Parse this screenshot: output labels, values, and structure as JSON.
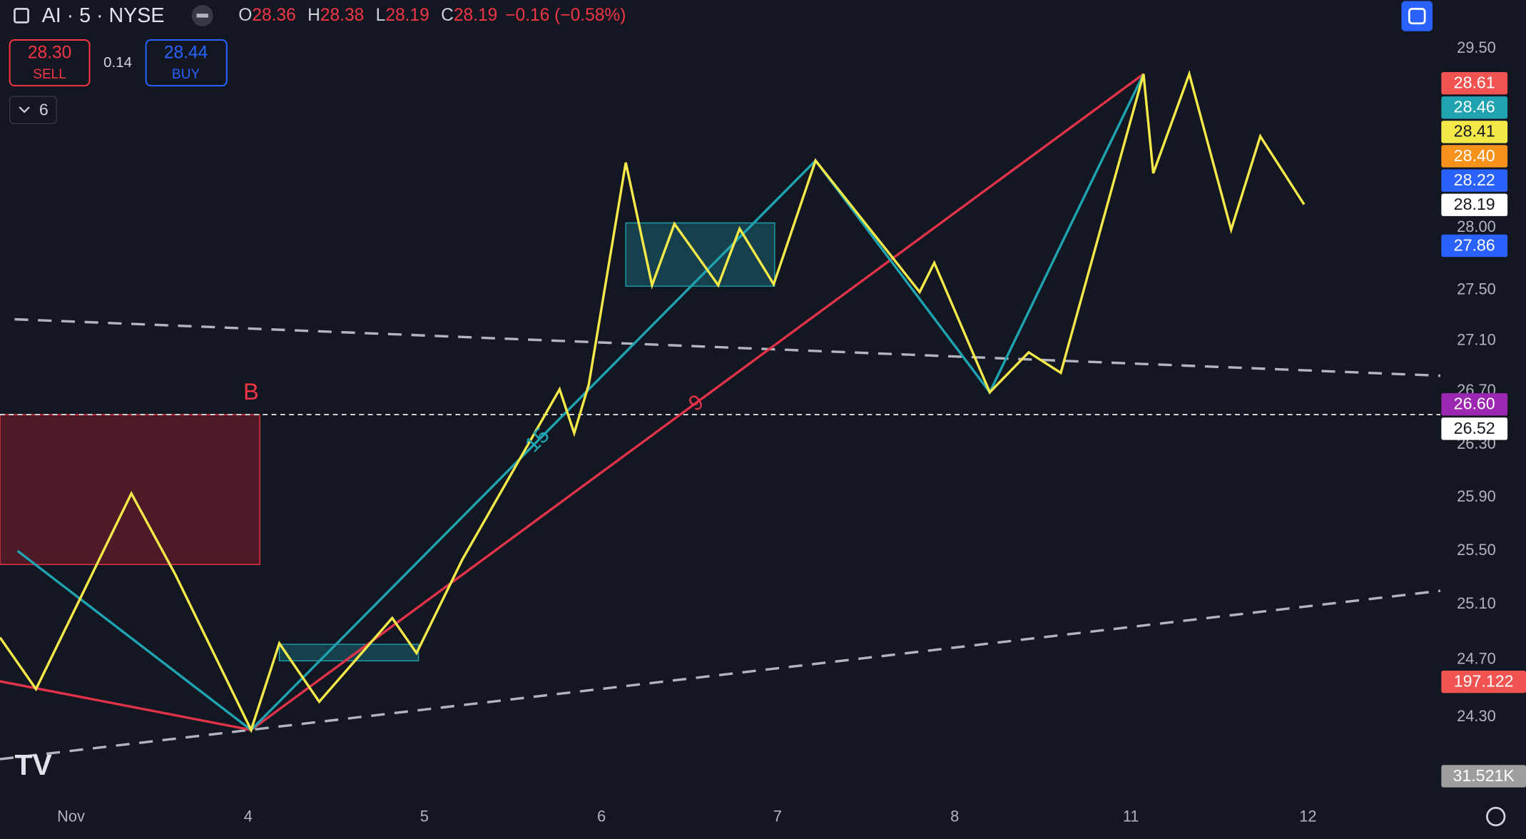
{
  "header": {
    "symbol": "AI · 5 · NYSE",
    "ohlc": [
      {
        "label": "O",
        "value": "28.36"
      },
      {
        "label": "H",
        "value": "28.38"
      },
      {
        "label": "L",
        "value": "28.19"
      },
      {
        "label": "C",
        "value": "28.19"
      }
    ],
    "change": "−0.16 (−0.58%)"
  },
  "trade": {
    "sell_price": "28.30",
    "sell_label": "SELL",
    "spread": "0.14",
    "buy_price": "28.44",
    "buy_label": "BUY"
  },
  "indicators_count": "6",
  "price_axis": [
    "29.50",
    "28.00",
    "27.50",
    "27.10",
    "26.70",
    "26.30",
    "25.90",
    "25.50",
    "25.10",
    "24.70",
    "24.30"
  ],
  "price_badges": [
    {
      "label": "28.61",
      "color": "#f05350"
    },
    {
      "label": "28.46",
      "color": "#1fa3b1"
    },
    {
      "label": "28.41",
      "color": "#f5e94a"
    },
    {
      "label": "28.40",
      "color": "#f7931a"
    },
    {
      "label": "28.22",
      "color": "#2962ff"
    },
    {
      "label": "28.19",
      "color": "#ffffff"
    },
    {
      "label": "27.86",
      "color": "#2962ff"
    },
    {
      "label": "26.60",
      "color": "#9c27b0"
    },
    {
      "label": "26.52",
      "color": "#ffffff"
    },
    {
      "label": "197.122",
      "color": "#f05350"
    },
    {
      "label": "31.521K",
      "color": "#9e9e9e"
    }
  ],
  "time_axis": [
    "Nov",
    "4",
    "5",
    "6",
    "7",
    "8",
    "11",
    "12"
  ],
  "annotations": {
    "box_label": "B",
    "red_count": "9",
    "teal_count": "15"
  }
}
